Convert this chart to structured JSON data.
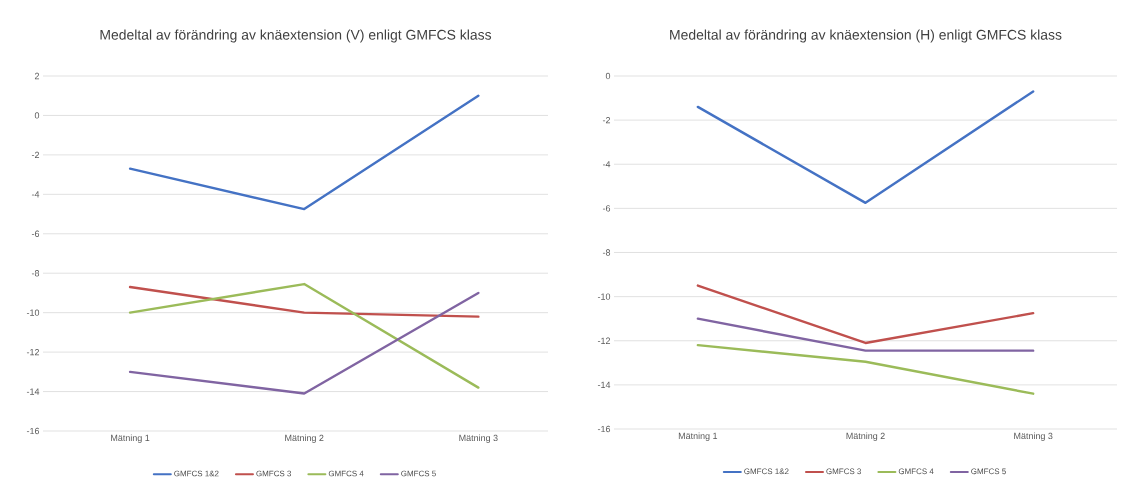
{
  "chart_data": [
    {
      "type": "line",
      "title": "Medeltal av förändring av knäextension (V) enligt GMFCS klass",
      "categories": [
        "Mätning 1",
        "Mätning 2",
        "Mätning 3"
      ],
      "ylim": [
        -16,
        2
      ],
      "yticks": [
        -16,
        -14,
        -12,
        -10,
        -8,
        -6,
        -4,
        -2,
        0,
        2
      ],
      "grid": "y",
      "legend": "bottom",
      "series": [
        {
          "name": "GMFCS 1&2",
          "color": "#4472c4",
          "values": [
            -2.7,
            -4.75,
            1.0
          ]
        },
        {
          "name": "GMFCS 3",
          "color": "#c0504d",
          "values": [
            -8.7,
            -10.0,
            -10.2
          ]
        },
        {
          "name": "GMFCS 4",
          "color": "#9bbb59",
          "values": [
            -10.0,
            -8.55,
            -13.8
          ]
        },
        {
          "name": "GMFCS 5",
          "color": "#8064a2",
          "values": [
            -13.0,
            -14.1,
            -9.0
          ]
        }
      ]
    },
    {
      "type": "line",
      "title": "Medeltal av förändring av knäextension (H) enligt GMFCS klass",
      "categories": [
        "Mätning 1",
        "Mätning 2",
        "Mätning 3"
      ],
      "ylim": [
        -16,
        0
      ],
      "yticks": [
        -16,
        -14,
        -12,
        -10,
        -8,
        -6,
        -4,
        -2,
        0
      ],
      "grid": "y",
      "legend": "bottom",
      "series": [
        {
          "name": "GMFCS 1&2",
          "color": "#4472c4",
          "values": [
            -1.4,
            -5.75,
            -0.7
          ]
        },
        {
          "name": "GMFCS 3",
          "color": "#c0504d",
          "values": [
            -9.5,
            -12.1,
            -10.75
          ]
        },
        {
          "name": "GMFCS 4",
          "color": "#9bbb59",
          "values": [
            -12.2,
            -12.95,
            -14.4
          ]
        },
        {
          "name": "GMFCS 5",
          "color": "#8064a2",
          "values": [
            -11.0,
            -12.45,
            -12.45
          ]
        }
      ]
    }
  ]
}
